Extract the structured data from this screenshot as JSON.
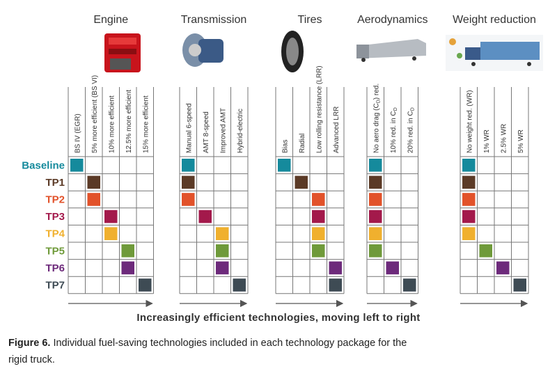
{
  "groups": [
    {
      "title": "Engine",
      "columns": [
        {
          "text": "BS IV (EGR)"
        },
        {
          "text": "5% more efficient (BS VI)"
        },
        {
          "text": "10% more efficient"
        },
        {
          "text": "12.5% more efficient"
        },
        {
          "text": "15% more efficient"
        }
      ]
    },
    {
      "title": "Transmission",
      "columns": [
        {
          "text": "Manual 6-speed"
        },
        {
          "text": "AMT 8-speed"
        },
        {
          "text": "Improved AMT"
        },
        {
          "text": "Hybrid-electric"
        }
      ]
    },
    {
      "title": "Tires",
      "columns": [
        {
          "text": "Bias"
        },
        {
          "text": "Radial"
        },
        {
          "text": "Low rolling resistance (LRR)"
        },
        {
          "text": "Advanced LRR"
        }
      ]
    },
    {
      "title": "Aerodynamics",
      "columns": [
        {
          "text": "No aero drag (C",
          "sub": "D",
          "post": ") red."
        },
        {
          "text": "10% red. in C",
          "sub": "D"
        },
        {
          "text": "20% red. in C",
          "sub": "D"
        }
      ]
    },
    {
      "title": "Weight reduction",
      "columns": [
        {
          "text": "No weight red. (WR)"
        },
        {
          "text": "1% WR"
        },
        {
          "text": "2.5% WR"
        },
        {
          "text": "5% WR"
        }
      ]
    }
  ],
  "rows": [
    {
      "name": "Baseline",
      "color": "#158a9c",
      "selections": [
        0,
        0,
        0,
        0,
        0
      ]
    },
    {
      "name": "TP1",
      "color": "#5b3a26",
      "selections": [
        1,
        0,
        1,
        0,
        0
      ]
    },
    {
      "name": "TP2",
      "color": "#e2522a",
      "selections": [
        1,
        0,
        2,
        0,
        0
      ]
    },
    {
      "name": "TP3",
      "color": "#a3194b",
      "selections": [
        2,
        1,
        2,
        0,
        0
      ]
    },
    {
      "name": "TP4",
      "color": "#f0b02e",
      "selections": [
        2,
        2,
        2,
        0,
        0
      ]
    },
    {
      "name": "TP5",
      "color": "#6f9a3a",
      "selections": [
        3,
        2,
        2,
        0,
        1
      ]
    },
    {
      "name": "TP6",
      "color": "#6d2a7b",
      "selections": [
        3,
        2,
        3,
        1,
        2
      ]
    },
    {
      "name": "TP7",
      "color": "#3e4b54",
      "selections": [
        4,
        3,
        3,
        2,
        3
      ]
    }
  ],
  "axis_label": "Increasingly efficient technologies, moving left to right",
  "caption": {
    "label": "Figure 6.",
    "text": "Individual fuel-saving technologies included in each technology package for the",
    "text_line2": "rigid truck."
  }
}
